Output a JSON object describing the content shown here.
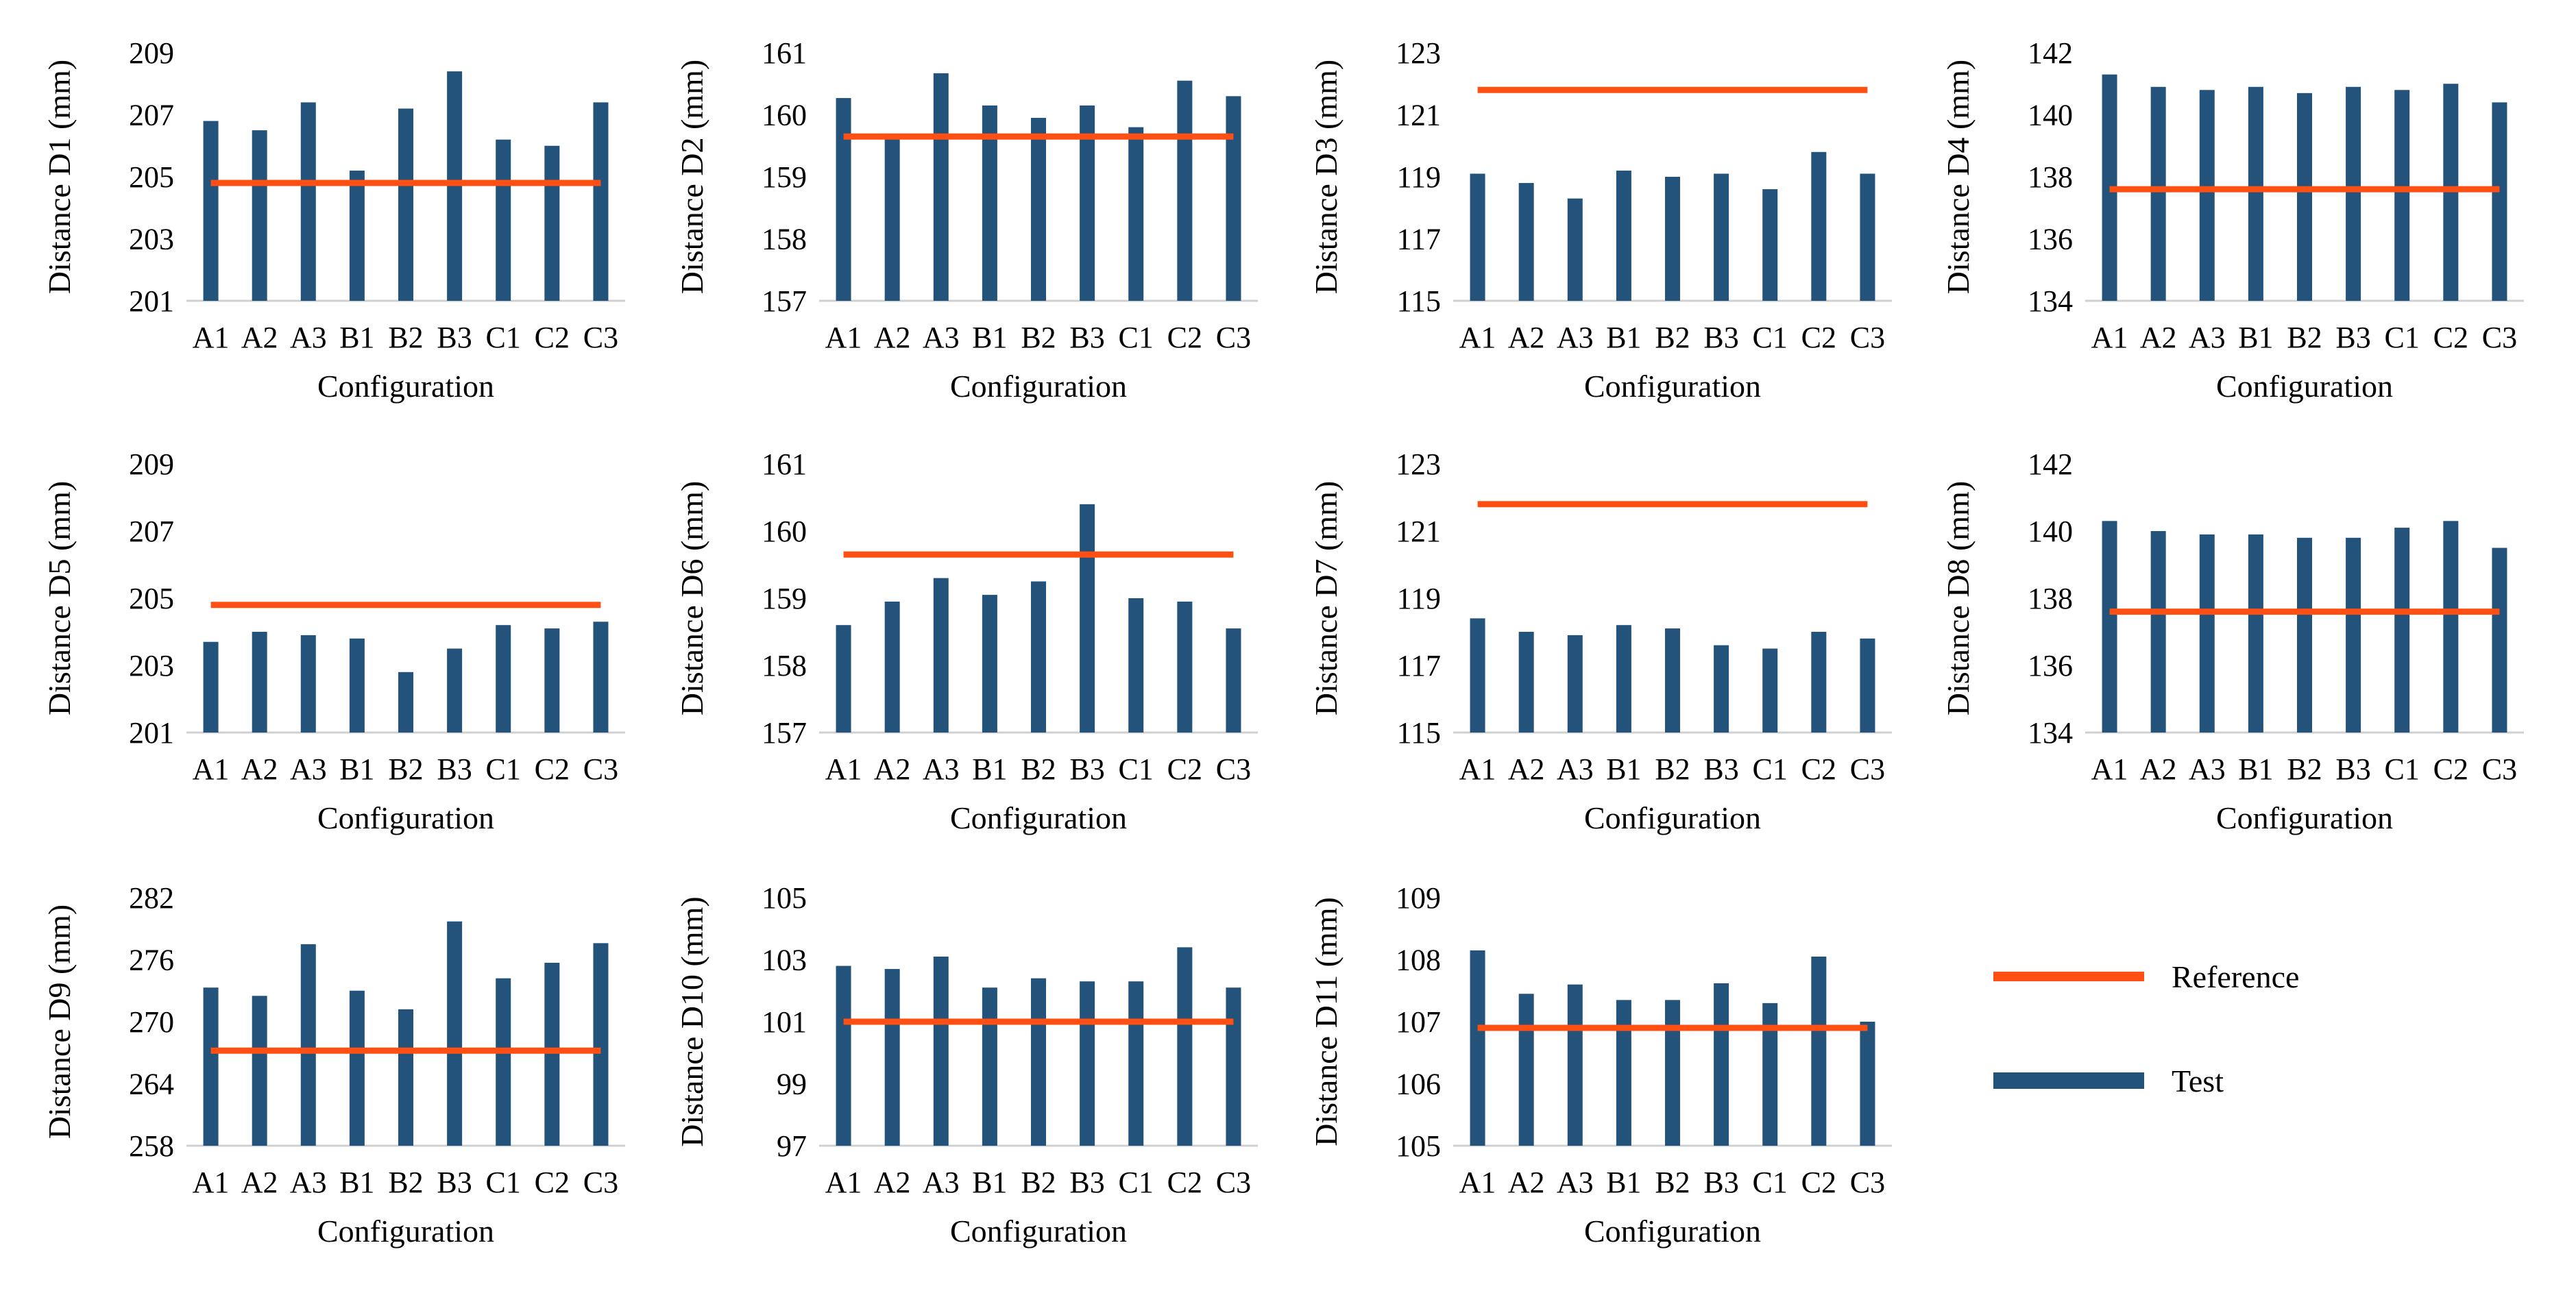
{
  "colors": {
    "reference": "#FF4F12",
    "test": "#23527B",
    "axis": "#D0D0D0"
  },
  "legend": {
    "reference_label": "Reference",
    "test_label": "Test"
  },
  "chart_data": [
    {
      "type": "bar",
      "title": "",
      "xlabel": "Configuration",
      "ylabel": "Distance D1 (mm)",
      "categories": [
        "A1",
        "A2",
        "A3",
        "B1",
        "B2",
        "B3",
        "C1",
        "C2",
        "C3"
      ],
      "ylim": [
        201,
        209
      ],
      "yticks": [
        201,
        203,
        205,
        207,
        209
      ],
      "series": [
        {
          "name": "Test",
          "values": [
            206.8,
            206.5,
            207.4,
            205.2,
            207.2,
            208.4,
            206.2,
            206.0,
            207.4
          ]
        },
        {
          "name": "Reference",
          "values": [
            204.8,
            204.8,
            204.8,
            204.8,
            204.8,
            204.8,
            204.8,
            204.8,
            204.8
          ]
        }
      ]
    },
    {
      "type": "bar",
      "title": "",
      "xlabel": "Configuration",
      "ylabel": "Distance D2 (mm)",
      "categories": [
        "A1",
        "A2",
        "A3",
        "B1",
        "B2",
        "B3",
        "C1",
        "C2",
        "C3"
      ],
      "ylim": [
        157,
        161
      ],
      "yticks": [
        157,
        158,
        159,
        160,
        161
      ],
      "series": [
        {
          "name": "Test",
          "values": [
            160.27,
            159.65,
            160.67,
            160.15,
            159.95,
            160.15,
            159.8,
            160.55,
            160.3
          ]
        },
        {
          "name": "Reference",
          "values": [
            159.65,
            159.65,
            159.65,
            159.65,
            159.65,
            159.65,
            159.65,
            159.65,
            159.65
          ]
        }
      ]
    },
    {
      "type": "bar",
      "title": "",
      "xlabel": "Configuration",
      "ylabel": "Distance D3 (mm)",
      "categories": [
        "A1",
        "A2",
        "A3",
        "B1",
        "B2",
        "B3",
        "C1",
        "C2",
        "C3"
      ],
      "ylim": [
        115,
        123
      ],
      "yticks": [
        115,
        117,
        119,
        121,
        123
      ],
      "series": [
        {
          "name": "Test",
          "values": [
            119.1,
            118.8,
            118.3,
            119.2,
            119.0,
            119.1,
            118.6,
            119.8,
            119.1
          ]
        },
        {
          "name": "Reference",
          "values": [
            121.8,
            121.8,
            121.8,
            121.8,
            121.8,
            121.8,
            121.8,
            121.8,
            121.8
          ]
        }
      ]
    },
    {
      "type": "bar",
      "title": "",
      "xlabel": "Configuration",
      "ylabel": "Distance D4 (mm)",
      "categories": [
        "A1",
        "A2",
        "A3",
        "B1",
        "B2",
        "B3",
        "C1",
        "C2",
        "C3"
      ],
      "ylim": [
        134,
        142
      ],
      "yticks": [
        134,
        136,
        138,
        140,
        142
      ],
      "series": [
        {
          "name": "Test",
          "values": [
            141.3,
            140.9,
            140.8,
            140.9,
            140.7,
            140.9,
            140.8,
            141.0,
            140.4
          ]
        },
        {
          "name": "Reference",
          "values": [
            137.6,
            137.6,
            137.6,
            137.6,
            137.6,
            137.6,
            137.6,
            137.6,
            137.6
          ]
        }
      ]
    },
    {
      "type": "bar",
      "title": "",
      "xlabel": "Configuration",
      "ylabel": "Distance D5 (mm)",
      "categories": [
        "A1",
        "A2",
        "A3",
        "B1",
        "B2",
        "B3",
        "C1",
        "C2",
        "C3"
      ],
      "ylim": [
        201,
        209
      ],
      "yticks": [
        201,
        203,
        205,
        207,
        209
      ],
      "series": [
        {
          "name": "Test",
          "values": [
            203.7,
            204.0,
            203.9,
            203.8,
            202.8,
            203.5,
            204.2,
            204.1,
            204.3
          ]
        },
        {
          "name": "Reference",
          "values": [
            204.8,
            204.8,
            204.8,
            204.8,
            204.8,
            204.8,
            204.8,
            204.8,
            204.8
          ]
        }
      ]
    },
    {
      "type": "bar",
      "title": "",
      "xlabel": "Configuration",
      "ylabel": "Distance D6 (mm)",
      "categories": [
        "A1",
        "A2",
        "A3",
        "B1",
        "B2",
        "B3",
        "C1",
        "C2",
        "C3"
      ],
      "ylim": [
        157,
        161
      ],
      "yticks": [
        157,
        158,
        159,
        160,
        161
      ],
      "series": [
        {
          "name": "Test",
          "values": [
            158.6,
            158.95,
            159.3,
            159.05,
            159.25,
            160.4,
            159.0,
            158.95,
            158.55
          ]
        },
        {
          "name": "Reference",
          "values": [
            159.65,
            159.65,
            159.65,
            159.65,
            159.65,
            159.65,
            159.65,
            159.65,
            159.65
          ]
        }
      ]
    },
    {
      "type": "bar",
      "title": "",
      "xlabel": "Configuration",
      "ylabel": "Distance D7 (mm)",
      "categories": [
        "A1",
        "A2",
        "A3",
        "B1",
        "B2",
        "B3",
        "C1",
        "C2",
        "C3"
      ],
      "ylim": [
        115,
        123
      ],
      "yticks": [
        115,
        117,
        119,
        121,
        123
      ],
      "series": [
        {
          "name": "Test",
          "values": [
            118.4,
            118.0,
            117.9,
            118.2,
            118.1,
            117.6,
            117.5,
            118.0,
            117.8
          ]
        },
        {
          "name": "Reference",
          "values": [
            121.8,
            121.8,
            121.8,
            121.8,
            121.8,
            121.8,
            121.8,
            121.8,
            121.8
          ]
        }
      ]
    },
    {
      "type": "bar",
      "title": "",
      "xlabel": "Configuration",
      "ylabel": "Distance D8 (mm)",
      "categories": [
        "A1",
        "A2",
        "A3",
        "B1",
        "B2",
        "B3",
        "C1",
        "C2",
        "C3"
      ],
      "ylim": [
        134,
        142
      ],
      "yticks": [
        134,
        136,
        138,
        140,
        142
      ],
      "series": [
        {
          "name": "Test",
          "values": [
            140.3,
            140.0,
            139.9,
            139.9,
            139.8,
            139.8,
            140.1,
            140.3,
            139.5
          ]
        },
        {
          "name": "Reference",
          "values": [
            137.6,
            137.6,
            137.6,
            137.6,
            137.6,
            137.6,
            137.6,
            137.6,
            137.6
          ]
        }
      ]
    },
    {
      "type": "bar",
      "title": "",
      "xlabel": "Configuration",
      "ylabel": "Distance D9 (mm)",
      "categories": [
        "A1",
        "A2",
        "A3",
        "B1",
        "B2",
        "B3",
        "C1",
        "C2",
        "C3"
      ],
      "ylim": [
        258,
        282
      ],
      "yticks": [
        258,
        264,
        270,
        276,
        282
      ],
      "series": [
        {
          "name": "Test",
          "values": [
            273.3,
            272.5,
            277.5,
            273.0,
            271.2,
            279.7,
            274.2,
            275.7,
            277.6
          ]
        },
        {
          "name": "Reference",
          "values": [
            267.2,
            267.2,
            267.2,
            267.2,
            267.2,
            267.2,
            267.2,
            267.2,
            267.2
          ]
        }
      ]
    },
    {
      "type": "bar",
      "title": "",
      "xlabel": "Configuration",
      "ylabel": "Distance D10 (mm)",
      "categories": [
        "A1",
        "A2",
        "A3",
        "B1",
        "B2",
        "B3",
        "C1",
        "C2",
        "C3"
      ],
      "ylim": [
        97,
        105
      ],
      "yticks": [
        97,
        99,
        101,
        103,
        105
      ],
      "series": [
        {
          "name": "Test",
          "values": [
            102.8,
            102.7,
            103.1,
            102.1,
            102.4,
            102.3,
            102.3,
            103.4,
            102.1
          ]
        },
        {
          "name": "Reference",
          "values": [
            101.0,
            101.0,
            101.0,
            101.0,
            101.0,
            101.0,
            101.0,
            101.0,
            101.0
          ]
        }
      ]
    },
    {
      "type": "bar",
      "title": "",
      "xlabel": "Configuration",
      "ylabel": "Distance D11 (mm)",
      "categories": [
        "A1",
        "A2",
        "A3",
        "B1",
        "B2",
        "B3",
        "C1",
        "C2",
        "C3"
      ],
      "ylim": [
        105,
        109
      ],
      "yticks": [
        105,
        106,
        107,
        108,
        109
      ],
      "series": [
        {
          "name": "Test",
          "values": [
            108.15,
            107.45,
            107.6,
            107.35,
            107.35,
            107.62,
            107.3,
            108.05,
            107.0
          ]
        },
        {
          "name": "Reference",
          "values": [
            106.9,
            106.9,
            106.9,
            106.9,
            106.9,
            106.9,
            106.9,
            106.9,
            106.9
          ]
        }
      ]
    }
  ]
}
